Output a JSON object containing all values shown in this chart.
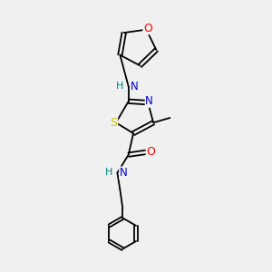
{
  "background_color": "#f0f0f0",
  "atom_colors": {
    "C": "#000000",
    "N": "#0000cc",
    "O": "#ff0000",
    "S": "#cccc00",
    "NH": "#008080",
    "NH2": "#0000cc"
  },
  "bond_color": "#000000",
  "font_size": 8.5,
  "fig_size": [
    3.0,
    3.0
  ],
  "dpi": 100,
  "lw": 1.3
}
